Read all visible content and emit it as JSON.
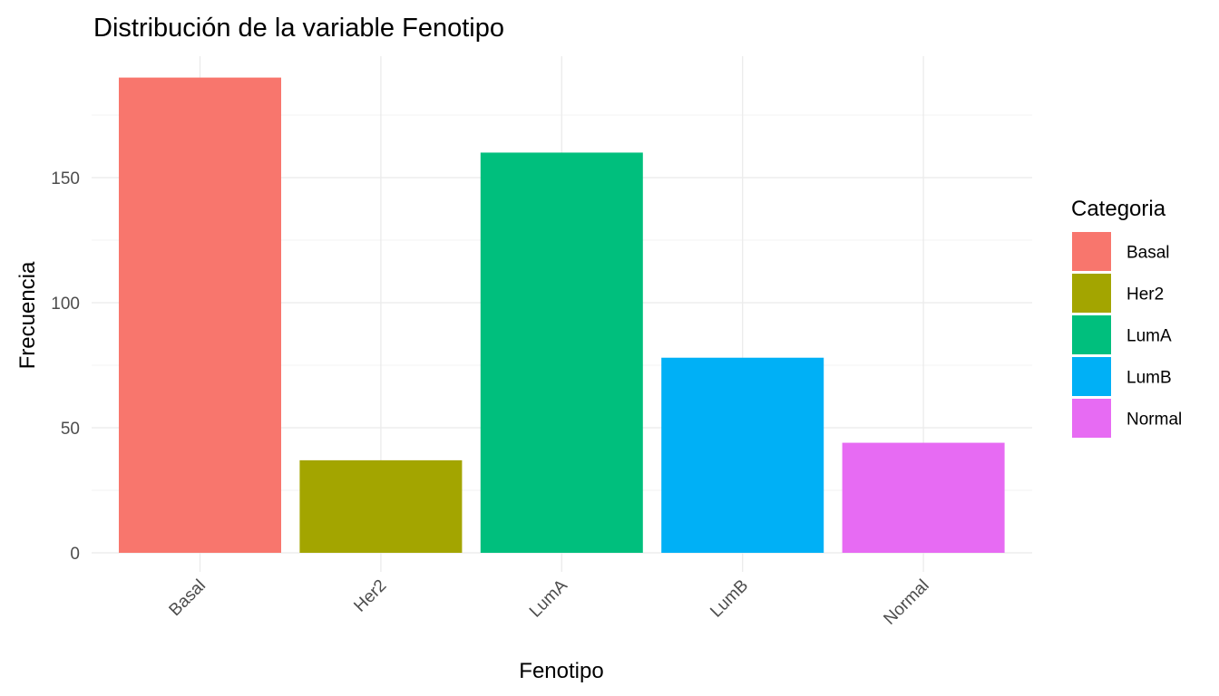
{
  "chart_data": {
    "type": "bar",
    "title": "Distribución de la variable Fenotipo",
    "xlabel": "Fenotipo",
    "ylabel": "Frecuencia",
    "categories": [
      "Basal",
      "Her2",
      "LumA",
      "LumB",
      "Normal"
    ],
    "values": [
      190,
      37,
      160,
      78,
      44
    ],
    "colors": [
      "#F8766D",
      "#A3A500",
      "#00BF7D",
      "#00B0F6",
      "#E76BF3"
    ],
    "ylim": [
      0,
      199
    ],
    "yticks": [
      0,
      50,
      100,
      150
    ],
    "grid": true,
    "legend": {
      "title": "Categoria",
      "position": "right",
      "entries": [
        "Basal",
        "Her2",
        "LumA",
        "LumB",
        "Normal"
      ]
    }
  }
}
